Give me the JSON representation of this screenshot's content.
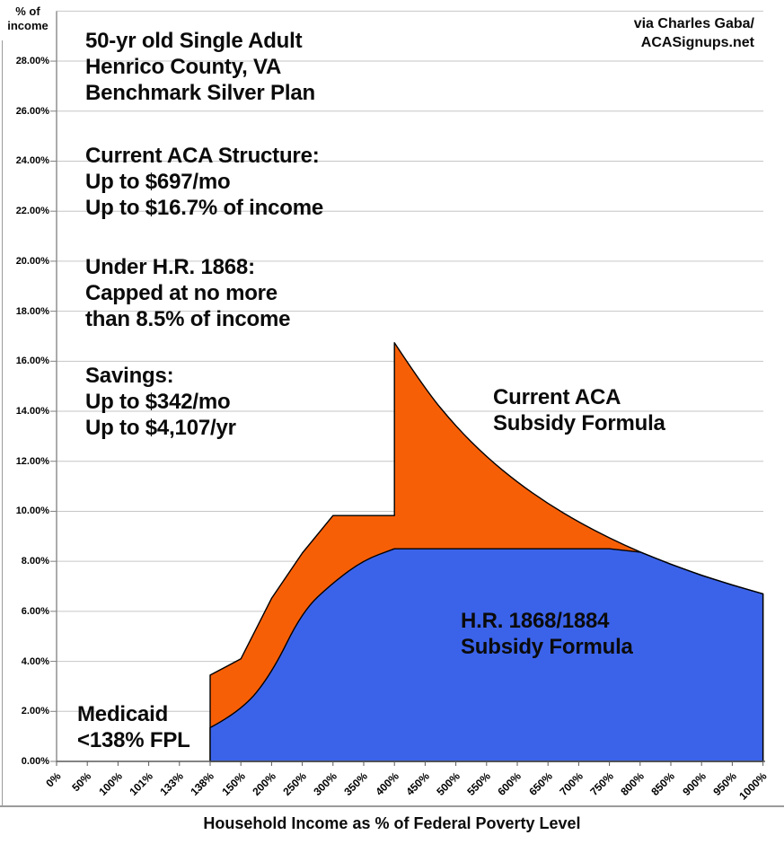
{
  "annotations": {
    "y_axis_unit": "% of\nincome",
    "header": "50-yr old Single Adult\nHenrico County, VA\nBenchmark Silver Plan",
    "credit": "via Charles Gaba/\nACASignups.net",
    "current_aca_structure": "Current ACA Structure:\nUp to $697/mo\nUp to $16.7% of income",
    "under_hr1868": "Under H.R. 1868:\nCapped at no more\nthan 8.5% of income",
    "savings": "Savings:\nUp to $342/mo\nUp to $4,107/yr",
    "current_aca_area_label": "Current ACA\nSubsidy Formula",
    "hr_area_label": "H.R. 1868/1884\nSubsidy Formula",
    "medicaid_label": "Medicaid\n<138% FPL",
    "x_axis_title": "Household Income as % of Federal Poverty Level"
  },
  "chart_data": {
    "type": "area",
    "title": "",
    "x_axis": {
      "title": "Household Income as % of Federal Poverty Level",
      "categories": [
        "0%",
        "50%",
        "100%",
        "101%",
        "133%",
        "138%",
        "150%",
        "200%",
        "250%",
        "300%",
        "350%",
        "400%",
        "450%",
        "500%",
        "550%",
        "600%",
        "650%",
        "700%",
        "750%",
        "800%",
        "850%",
        "900%",
        "950%",
        "1000%"
      ]
    },
    "y_axis": {
      "unit_label": "% of income",
      "tick_labels": [
        "0.00%",
        "2.00%",
        "4.00%",
        "6.00%",
        "8.00%",
        "10.00%",
        "12.00%",
        "14.00%",
        "16.00%",
        "18.00%",
        "20.00%",
        "22.00%",
        "24.00%",
        "26.00%",
        "28.00%"
      ],
      "tick_values": [
        0,
        2,
        4,
        6,
        8,
        10,
        12,
        14,
        16,
        18,
        20,
        22,
        24,
        26,
        28
      ],
      "gridline_values": [
        2,
        4,
        6,
        8,
        10,
        12,
        14,
        16,
        18,
        20,
        22,
        24,
        26,
        28,
        30
      ],
      "range": [
        0,
        30
      ],
      "grid": true
    },
    "legend_position": "in-plot text labels",
    "series": [
      {
        "name": "Current ACA Subsidy Formula",
        "color": "#f75f07",
        "outline": "#000000",
        "points": [
          [
            5,
            3.45
          ],
          [
            6,
            4.1
          ],
          [
            7,
            6.52
          ],
          [
            8,
            8.33
          ],
          [
            9,
            9.83
          ],
          [
            10,
            9.83
          ],
          [
            11,
            9.83
          ],
          [
            11,
            16.74
          ],
          [
            12,
            14.88
          ],
          [
            13,
            13.39
          ],
          [
            14,
            12.17
          ],
          [
            15,
            11.16
          ],
          [
            16,
            10.3
          ],
          [
            17,
            9.57
          ],
          [
            18,
            8.93
          ],
          [
            19,
            8.37
          ],
          [
            20,
            7.88
          ],
          [
            21,
            7.44
          ],
          [
            22,
            7.05
          ],
          [
            23,
            6.7
          ]
        ],
        "smooth_from": 7,
        "smooth_to": 19
      },
      {
        "name": "H.R. 1868/1884 Subsidy Formula",
        "color": "#3b63ea",
        "outline": "#000000",
        "points": [
          [
            5,
            1.35
          ],
          [
            6,
            2.0
          ],
          [
            7,
            3.5
          ],
          [
            8,
            6.0
          ],
          [
            9,
            7.15
          ],
          [
            10,
            8.05
          ],
          [
            11,
            8.5
          ],
          [
            18,
            8.5
          ],
          [
            19,
            8.37
          ],
          [
            20,
            7.88
          ],
          [
            21,
            7.44
          ],
          [
            22,
            7.05
          ],
          [
            23,
            6.7
          ]
        ],
        "smooth_from": 0,
        "smooth_to": 6
      }
    ],
    "style": {
      "grid_color": "#c6c6c6",
      "axis_color": "#808080",
      "frame_color": "#9b9b9b",
      "outline_color": "#000000"
    }
  }
}
